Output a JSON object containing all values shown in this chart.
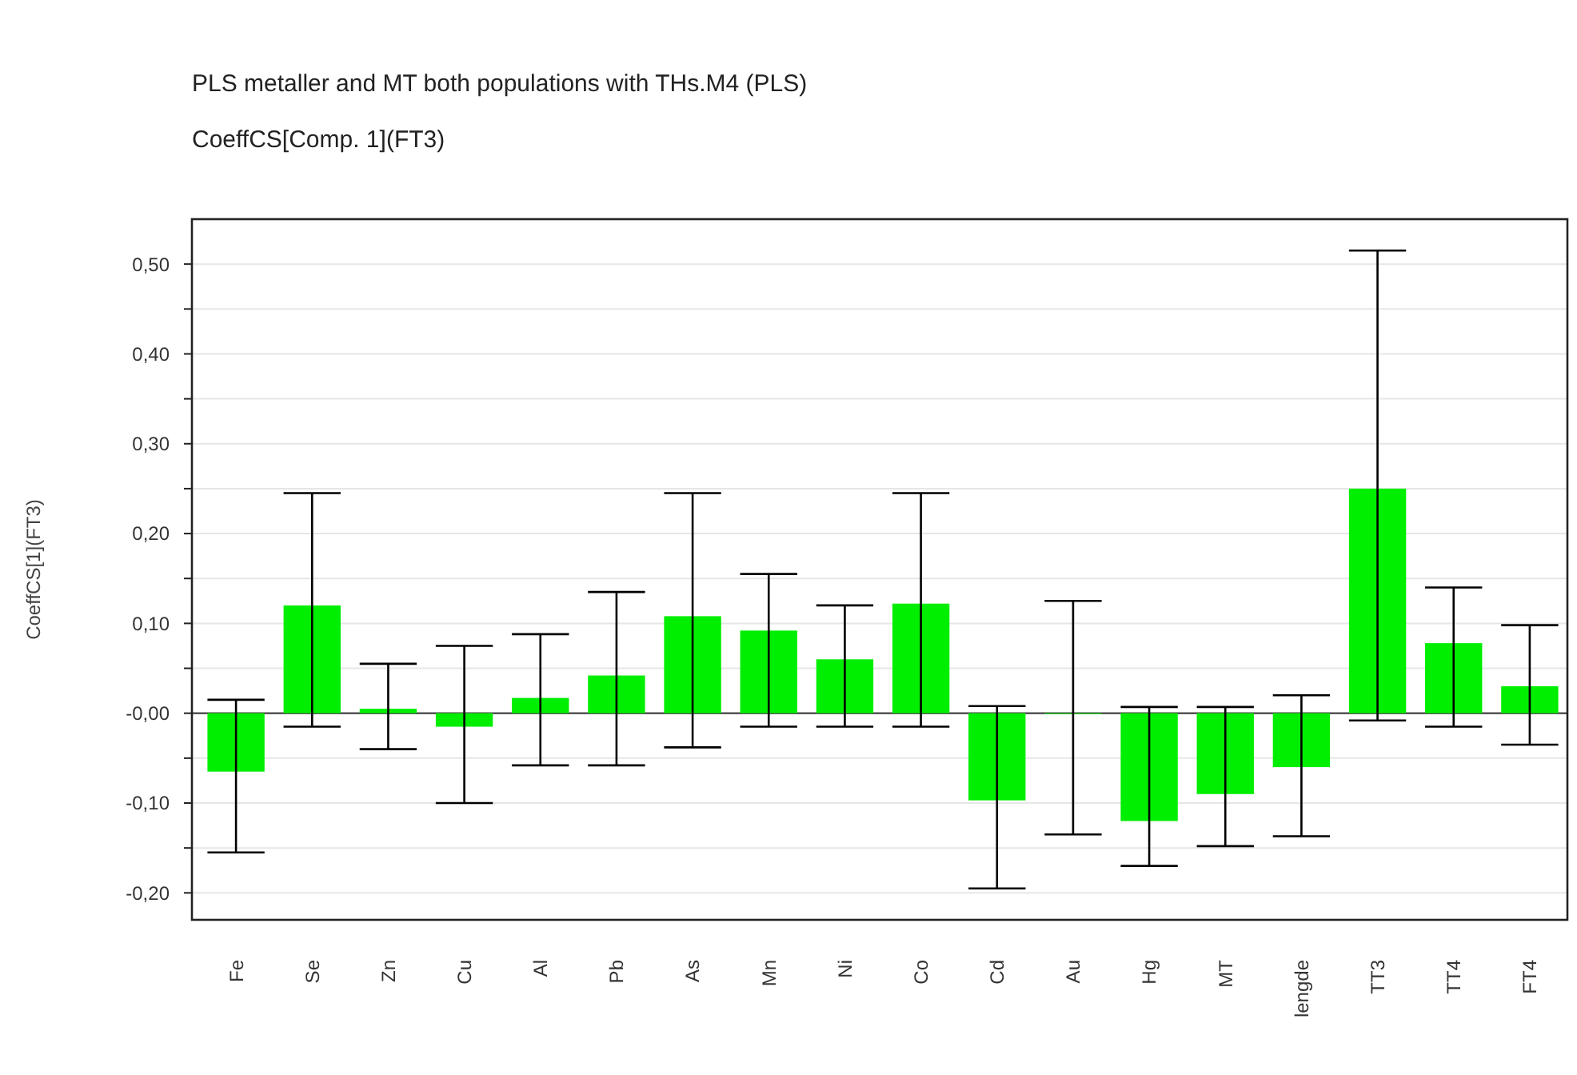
{
  "chart_data": {
    "type": "bar",
    "title": "PLS metaller and MT both populations with THs.M4 (PLS)",
    "subtitle": "CoeffCS[Comp. 1](FT3)",
    "ylabel": "CoeffCS[1](FT3)",
    "categories": [
      "Fe",
      "Se",
      "Zn",
      "Cu",
      "Al",
      "Pb",
      "As",
      "Mn",
      "Ni",
      "Co",
      "Cd",
      "Au",
      "Hg",
      "MT",
      "lengde",
      "TT3",
      "TT4",
      "FT4"
    ],
    "values": [
      -0.065,
      0.12,
      0.005,
      -0.015,
      0.017,
      0.042,
      0.108,
      0.092,
      0.06,
      0.122,
      -0.097,
      0,
      -0.12,
      -0.09,
      -0.06,
      0.25,
      0.078,
      0.03
    ],
    "errors": [
      [
        -0.155,
        0.015
      ],
      [
        -0.015,
        0.245
      ],
      [
        -0.04,
        0.055
      ],
      [
        -0.1,
        0.075
      ],
      [
        -0.058,
        0.088
      ],
      [
        -0.058,
        0.135
      ],
      [
        -0.038,
        0.245
      ],
      [
        -0.015,
        0.155
      ],
      [
        -0.015,
        0.12
      ],
      [
        -0.015,
        0.245
      ],
      [
        -0.195,
        0.008
      ],
      [
        -0.135,
        0.125
      ],
      [
        -0.17,
        0.007
      ],
      [
        -0.148,
        0.007
      ],
      [
        -0.137,
        0.02
      ],
      [
        -0.008,
        0.515
      ],
      [
        -0.015,
        0.14
      ],
      [
        -0.035,
        0.098
      ]
    ],
    "color": "#00ee00",
    "ylim": [
      -0.23,
      0.55
    ],
    "yticks": [
      {
        "value": -0.2,
        "label": "-0,20"
      },
      {
        "value": -0.15,
        "label": null
      },
      {
        "value": -0.1,
        "label": "-0,10"
      },
      {
        "value": -0.05,
        "label": null
      },
      {
        "value": 0,
        "label": "-0,00"
      },
      {
        "value": 0.05,
        "label": null
      },
      {
        "value": 0.1,
        "label": "0,10"
      },
      {
        "value": 0.15,
        "label": null
      },
      {
        "value": 0.2,
        "label": "0,20"
      },
      {
        "value": 0.25,
        "label": null
      },
      {
        "value": 0.3,
        "label": "0,30"
      },
      {
        "value": 0.35,
        "label": null
      },
      {
        "value": 0.4,
        "label": "0,40"
      },
      {
        "value": 0.45,
        "label": null
      },
      {
        "value": 0.5,
        "label": "0,50"
      }
    ],
    "grid": "y"
  }
}
